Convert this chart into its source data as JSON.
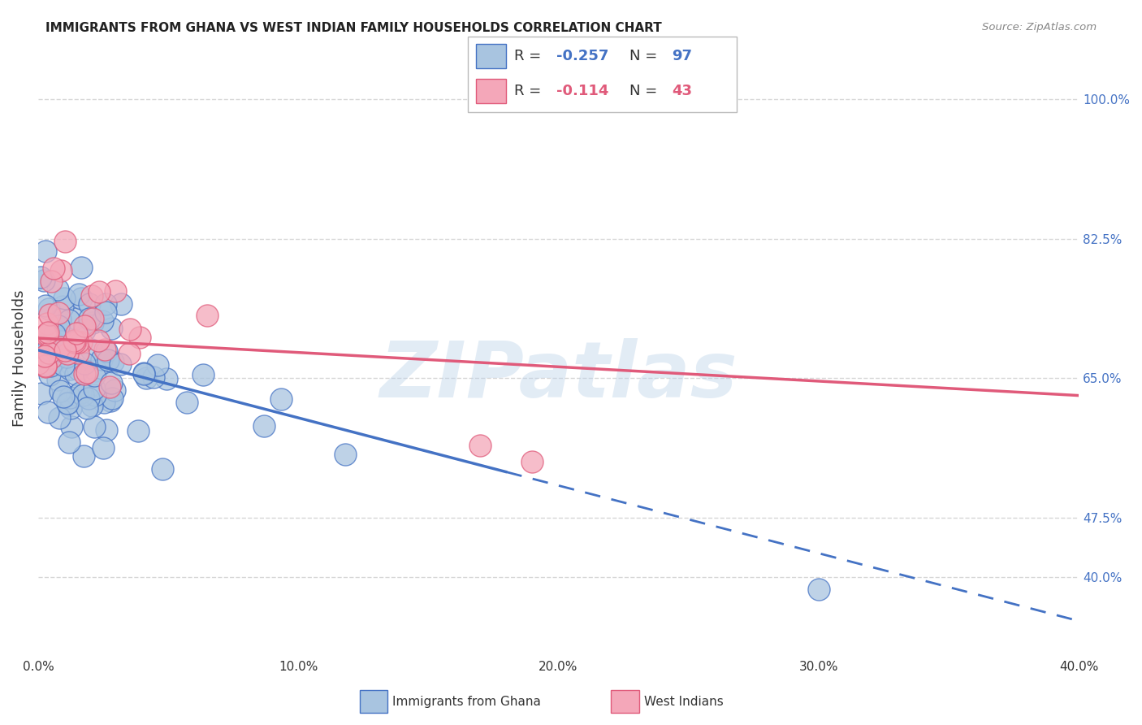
{
  "title": "IMMIGRANTS FROM GHANA VS WEST INDIAN FAMILY HOUSEHOLDS CORRELATION CHART",
  "source": "Source: ZipAtlas.com",
  "ylabel": "Family Households",
  "watermark": "ZIPatlas",
  "series": [
    {
      "name": "Immigrants from Ghana",
      "R": -0.257,
      "N": 97,
      "color": "#a8c4e0",
      "line_color": "#4472c4"
    },
    {
      "name": "West Indians",
      "R": -0.114,
      "N": 43,
      "color": "#f4a7b9",
      "line_color": "#e05a7a"
    }
  ],
  "yticks": [
    0.4,
    0.475,
    0.65,
    0.825,
    1.0
  ],
  "ytick_labels": [
    "40.0%",
    "47.5%",
    "65.0%",
    "82.5%",
    "100.0%"
  ],
  "xlim": [
    0.0,
    0.4
  ],
  "ylim": [
    0.3,
    1.05
  ],
  "xticks": [
    0.0,
    0.1,
    0.2,
    0.3,
    0.4
  ],
  "xtick_labels": [
    "0.0%",
    "10.0%",
    "20.0%",
    "30.0%",
    "40.0%"
  ],
  "grid_color": "#cccccc",
  "background_color": "#ffffff",
  "title_fontsize": 11,
  "axis_label_color": "#4472c4",
  "legend_color_1": "#a8c4e0",
  "legend_color_2": "#f4a7b9",
  "trend1_solid_end": 0.18,
  "trend1_intercept": 0.685,
  "trend1_slope": -0.85,
  "trend2_intercept": 0.7,
  "trend2_slope": -0.18
}
